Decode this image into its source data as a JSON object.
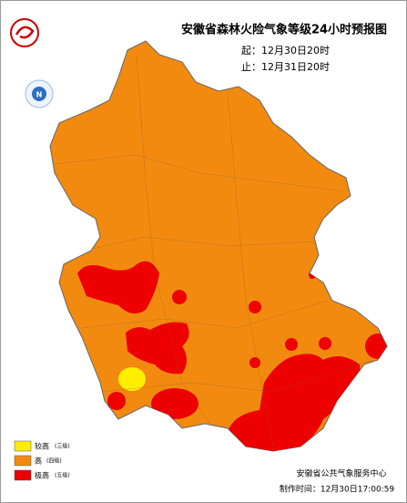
{
  "title": "安徽省森林火险气象等级24小时预报图",
  "valid_from": "起：12月30日20时",
  "valid_to": "止：12月31日20时",
  "compass": "N",
  "legend": [
    {
      "label": "较高",
      "level": "(三级)",
      "color": "#ffee00"
    },
    {
      "label": "高",
      "level": "(四级)",
      "color": "#f28a10"
    },
    {
      "label": "极高",
      "level": "(五级)",
      "color": "#ee0000"
    }
  ],
  "footer": {
    "agency": "安徽省公共气象服务中心",
    "made_time": "制作时间：12月30日17:00:59"
  }
}
